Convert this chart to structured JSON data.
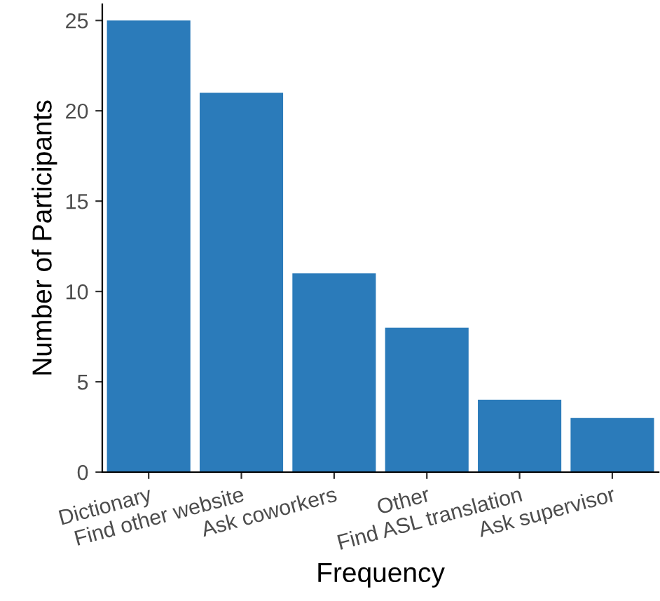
{
  "chart_data": {
    "type": "bar",
    "xlabel": "Frequency",
    "ylabel": "Number of Participants",
    "categories": [
      "Dictionary",
      "Find other website",
      "Ask coworkers",
      "Other",
      "Find ASL translation",
      "Ask supervisor"
    ],
    "values": [
      25,
      21,
      11,
      8,
      4,
      3
    ],
    "color": "#2b7bba",
    "ylim": [
      0,
      25.9
    ],
    "yticks": [
      0,
      5,
      10,
      15,
      20,
      25
    ],
    "grid": false,
    "legend": false
  }
}
